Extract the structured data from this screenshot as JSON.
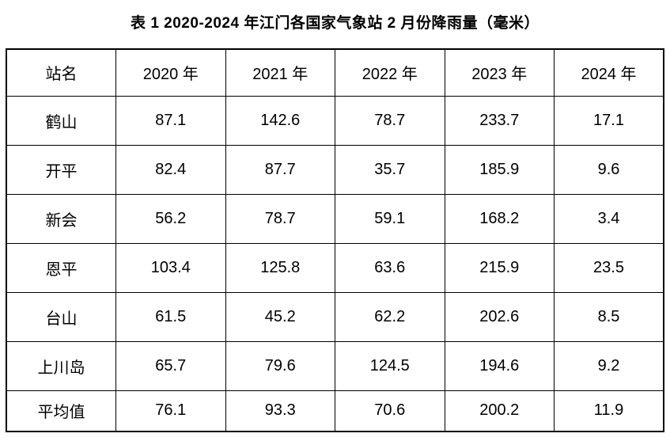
{
  "chart_data": {
    "type": "table",
    "title": "表 1 2020-2024 年江门各国家气象站 2 月份降雨量（毫米）",
    "columns": [
      "站名",
      "2020 年",
      "2021 年",
      "2022 年",
      "2023 年",
      "2024 年"
    ],
    "rows": [
      [
        "鹤山",
        87.1,
        142.6,
        78.7,
        233.7,
        17.1
      ],
      [
        "开平",
        82.4,
        87.7,
        35.7,
        185.9,
        9.6
      ],
      [
        "新会",
        56.2,
        78.7,
        59.1,
        168.2,
        3.4
      ],
      [
        "恩平",
        103.4,
        125.8,
        63.6,
        215.9,
        23.5
      ],
      [
        "台山",
        61.5,
        45.2,
        62.2,
        202.6,
        8.5
      ],
      [
        "上川岛",
        65.7,
        79.6,
        124.5,
        194.6,
        9.2
      ],
      [
        "平均值",
        76.1,
        93.3,
        70.6,
        200.2,
        11.9
      ]
    ],
    "layout": {
      "grid": true,
      "text_color": "#000000",
      "border_color": "#000000",
      "background_color": "#ffffff"
    }
  }
}
